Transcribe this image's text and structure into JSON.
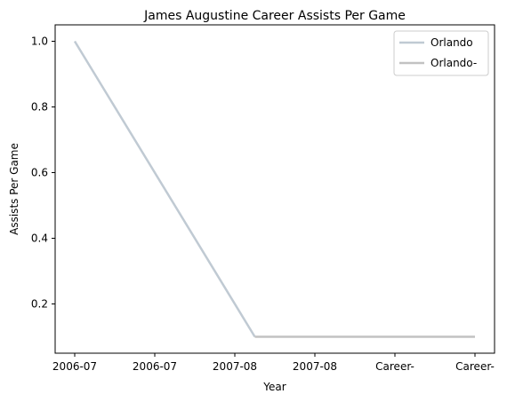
{
  "chart_data": {
    "type": "line",
    "title": "James Augustine Career Assists Per Game",
    "xlabel": "Year",
    "ylabel": "Assists Per Game",
    "categories": [
      "2006-07",
      "2006-07",
      "2007-08",
      "2007-08",
      "Career-",
      "Career-"
    ],
    "ylim": [
      0.05,
      1.05
    ],
    "yticks": [
      0.2,
      0.4,
      0.6,
      0.8,
      1.0
    ],
    "ytick_labels": [
      "0.2",
      "0.4",
      "0.6",
      "0.8",
      "1.0"
    ],
    "grid": false,
    "legend_position": "top-right",
    "series": [
      {
        "name": "Orlando",
        "color": "#c0cad3",
        "x": [
          0,
          2.25
        ],
        "values": [
          1.0,
          0.1
        ]
      },
      {
        "name": "Orlando-",
        "color": "#c2c2c2",
        "x": [
          2.25,
          5
        ],
        "values": [
          0.1,
          0.1
        ]
      }
    ]
  }
}
